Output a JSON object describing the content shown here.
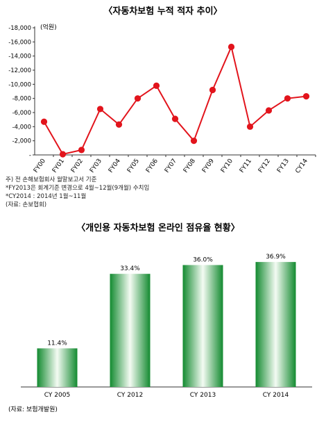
{
  "chart_data": [
    {
      "type": "line",
      "title": "〈자동차보험 누적 적자 추이〉",
      "unit_label": "(억원)",
      "categories": [
        "FY00",
        "FY01",
        "FY02",
        "FY03",
        "FY04",
        "FY05",
        "FY06",
        "FY07",
        "FY08",
        "FY09",
        "FY10",
        "FY11",
        "FY12",
        "FY13",
        "CY14"
      ],
      "series": [
        {
          "values": [
            -4700,
            -100,
            -700,
            -6500,
            -4300,
            -8000,
            -9800,
            -5100,
            -2000,
            -9200,
            -15300,
            -4000,
            -6300,
            -8000,
            -8300
          ]
        }
      ],
      "y_ticks": [
        "-18,000",
        "-16,000",
        "-14,000",
        "-12,000",
        "-10,000",
        "-8,000",
        "-6,000",
        "-4,000",
        "-2,000",
        "-"
      ],
      "ylim": [
        0,
        -18000
      ],
      "y_reversed": true,
      "grid": false,
      "color": "#e2141c",
      "notes": [
        "주) 전 손해보험회사 월말보고서 기준",
        "*FY2013은 회계기준 변경으로 4월~12월(9개월) 수치임",
        "*CY2014 : 2014년 1월~11월",
        "(자료: 손보협회)"
      ]
    },
    {
      "type": "bar",
      "title": "〈개인용 자동차보험 온라인 점유율 현황〉",
      "categories": [
        "CY 2005",
        "CY 2012",
        "CY 2013",
        "CY 2014"
      ],
      "values": [
        11.4,
        33.4,
        36.0,
        36.9
      ],
      "value_labels": [
        "11.4%",
        "33.4%",
        "36.0%",
        "36.9%"
      ],
      "ylim": [
        0,
        40
      ],
      "grid": false,
      "color": "#1e9a3c",
      "source": "(자료: 보험개발원)"
    }
  ]
}
